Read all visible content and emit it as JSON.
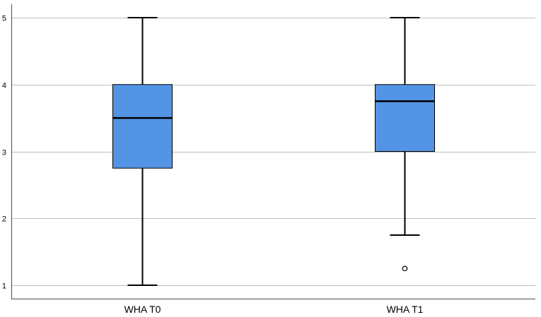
{
  "chart_data": {
    "type": "boxplot",
    "categories": [
      "WHA T0",
      "WHA T1"
    ],
    "series": [
      {
        "category": "WHA T0",
        "whisker_low": 1,
        "q1": 2.75,
        "median": 3.5,
        "q3": 4,
        "whisker_high": 5,
        "outliers": []
      },
      {
        "category": "WHA T1",
        "whisker_low": 1.75,
        "q1": 3,
        "median": 3.75,
        "q3": 4,
        "whisker_high": 5,
        "outliers": [
          1.25
        ]
      }
    ],
    "yticks": [
      "1",
      "2",
      "3",
      "4",
      "5"
    ],
    "ylim": [
      0.8,
      5.2
    ],
    "grid": true,
    "legend": "none",
    "colors": {
      "box_fill": "#5394e4",
      "stroke": "#000000",
      "grid": "#bdbdbd",
      "axis": "#4d4d4d"
    }
  }
}
